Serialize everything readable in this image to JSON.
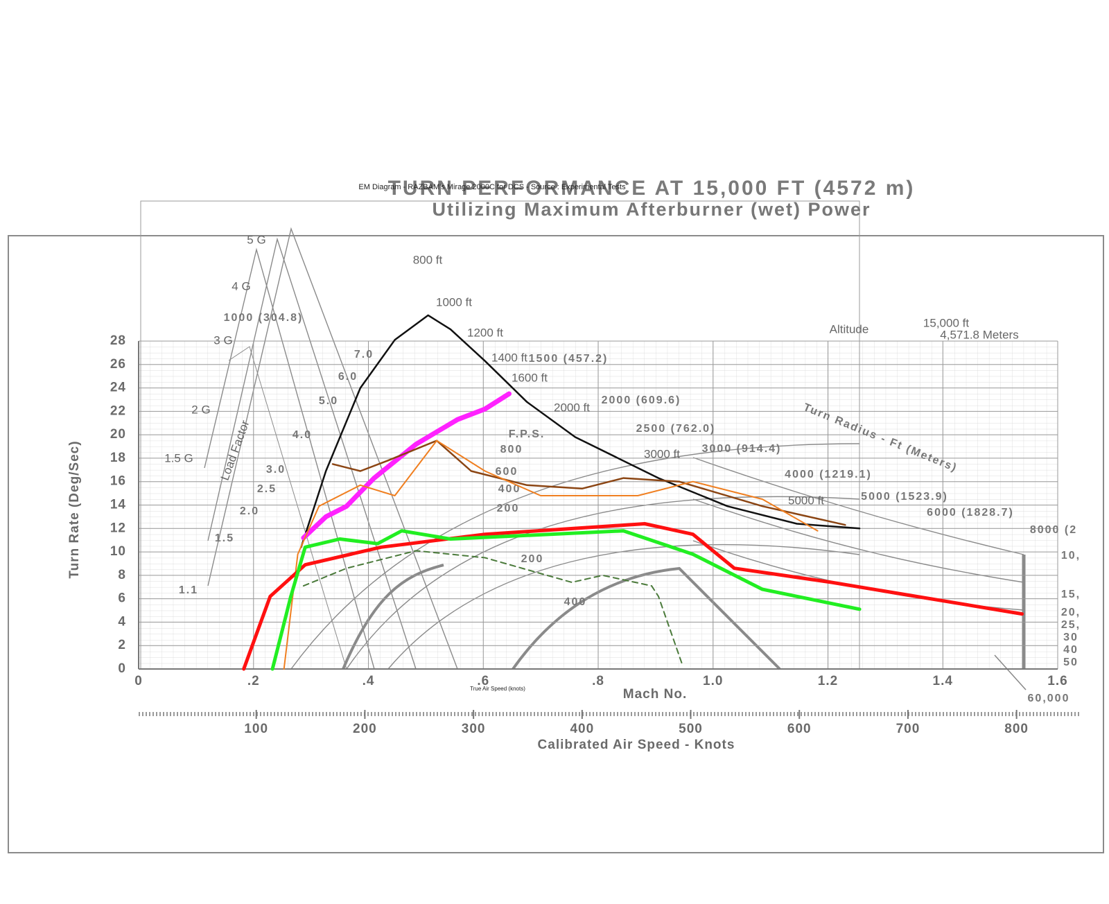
{
  "chart_data": {
    "type": "line",
    "title": "TURN PERFORMANCE AT 15,000 FT (4572 m)",
    "subtitle": "Utilizing Maximum Afterburner (wet) Power",
    "overlay_title": "EM Diagram - RAZBAM's Mirage 2000C for DCS - Source : Experimental Tests",
    "y_label": "Turn Rate (Deg/Sec)",
    "x_label": "Mach No.",
    "x2_label": "Calibrated Air Speed - Knots",
    "tas_label": "True Air Speed (knots)",
    "xlim": [
      0,
      1.6
    ],
    "ylim": [
      0,
      28
    ],
    "xticks": [
      0,
      {
        "value": 0.2,
        "label": ".2"
      },
      {
        "value": 0.4,
        "label": ".4"
      },
      {
        "value": 0.6,
        "label": ".6"
      },
      {
        "value": 0.8,
        "label": ".8"
      },
      {
        "value": 1.0,
        "label": "1.0"
      },
      {
        "value": 1.2,
        "label": "1.2"
      },
      {
        "value": 1.4,
        "label": "1.4"
      },
      {
        "value": 1.6,
        "label": "1.6"
      }
    ],
    "yticks": [
      0,
      2,
      4,
      6,
      8,
      10,
      12,
      14,
      16,
      18,
      20,
      22,
      24,
      26,
      28
    ],
    "x2lim": [
      0,
      850
    ],
    "x2ticks": [
      100,
      200,
      300,
      400,
      500,
      600,
      700,
      800
    ],
    "grid": true,
    "annotations": [
      "Altitude",
      "15,000 ft",
      "4,571.8 Meters",
      "5 G",
      "4 G",
      "3 G",
      "2 G",
      "1.5 G",
      "Load Factor",
      "800 ft",
      "1000 ft",
      "1200 ft",
      "1400 ft",
      "1600 ft",
      "2000 ft",
      "3000 ft",
      "5000 ft",
      "1000 (304.8)",
      "1500 (457.2)",
      "2000 (609.6)",
      "2500 (762.0)",
      "3000 (914.4)",
      "4000 (1219.1)",
      "5000 (1523.9)",
      "6000 (1828.7)",
      "8000 (2",
      "Turn Radius - Ft (Meters)",
      "F.P.S.",
      "800",
      "600",
      "400",
      "200",
      "200",
      "400",
      "7.0",
      "6.0",
      "5.0",
      "4.0",
      "3.0",
      "2.5",
      "2.0",
      "1.5",
      "1.1",
      "60,000",
      "10,",
      "15,",
      "20,",
      "25,",
      "30",
      "40",
      "50"
    ],
    "series": [
      {
        "color": "#111111",
        "width": 2.5,
        "x": [
          0.283,
          0.326,
          0.386,
          0.446,
          0.504,
          0.543,
          0.603,
          0.676,
          0.76,
          0.905,
          1.025,
          1.146,
          1.255
        ],
        "values": [
          10.4,
          16.9,
          24.0,
          28.1,
          30.2,
          29.0,
          26.3,
          22.8,
          19.8,
          16.3,
          13.9,
          12.4,
          12.0
        ]
      },
      {
        "color": "#ff22ff",
        "width": 7,
        "x": [
          0.287,
          0.326,
          0.362,
          0.41,
          0.483,
          0.555,
          0.603,
          0.645
        ],
        "values": [
          11.2,
          13.0,
          13.9,
          16.3,
          19.2,
          21.3,
          22.2,
          23.5
        ]
      },
      {
        "color": "#8b4513",
        "width": 2.5,
        "x": [
          0.338,
          0.386,
          0.434,
          0.519,
          0.579,
          0.676,
          0.772,
          0.844,
          0.941,
          1.086,
          1.23
        ],
        "values": [
          17.5,
          16.9,
          17.8,
          19.5,
          16.9,
          15.7,
          15.4,
          16.3,
          16.0,
          13.9,
          12.3
        ]
      },
      {
        "color": "#f07f20",
        "width": 2,
        "x": [
          0.253,
          0.277,
          0.314,
          0.386,
          0.446,
          0.519,
          0.603,
          0.7,
          0.869,
          0.965,
          1.086,
          1.182
        ],
        "values": [
          0,
          9.8,
          13.9,
          15.7,
          14.8,
          19.5,
          16.9,
          14.8,
          14.8,
          16.0,
          14.5,
          11.8
        ]
      },
      {
        "color": "#ff1010",
        "width": 5,
        "x": [
          0.183,
          0.229,
          0.29,
          0.422,
          0.603,
          0.881,
          0.965,
          1.037,
          1.206,
          1.538
        ],
        "values": [
          0,
          6.2,
          8.9,
          10.4,
          11.5,
          12.4,
          11.5,
          8.6,
          7.4,
          4.7
        ]
      },
      {
        "color": "#22ee22",
        "width": 5,
        "x": [
          0.233,
          0.265,
          0.29,
          0.35,
          0.416,
          0.458,
          0.543,
          0.844,
          0.965,
          1.086,
          1.255
        ],
        "values": [
          0,
          6.2,
          10.4,
          11.1,
          10.7,
          11.8,
          11.1,
          11.8,
          9.8,
          6.8,
          5.1
        ]
      },
      {
        "color": "#4a7a3a",
        "width": 2,
        "dash": "8 6",
        "x": [
          0.287,
          0.362,
          0.483,
          0.603,
          0.754,
          0.808,
          0.893,
          0.905,
          0.947
        ],
        "values": [
          7.1,
          8.6,
          10.1,
          9.5,
          7.4,
          8.0,
          7.1,
          6.2,
          0.3
        ]
      }
    ]
  }
}
